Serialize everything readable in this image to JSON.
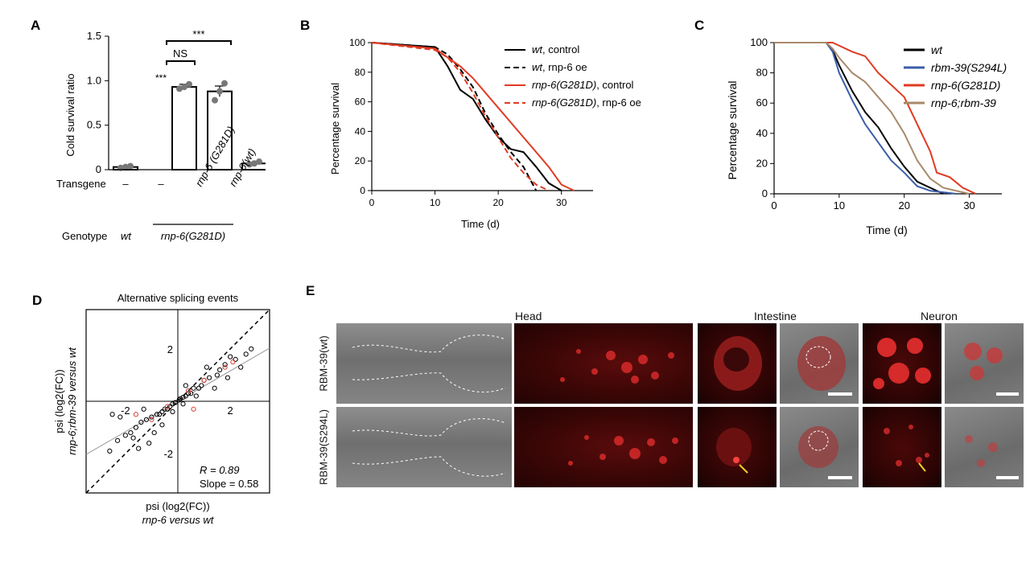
{
  "panelA": {
    "label": "A",
    "ylabel": "Cold survival ratio",
    "yticks": [
      "1.5",
      "1.0",
      "0.5",
      "0"
    ],
    "transgene_label": "Transgene",
    "transgene_values": [
      "–",
      "–",
      "rnp-6 (G281D)",
      "rnp-6(wt)"
    ],
    "genotype_label": "Genotype",
    "genotype_wt": "wt",
    "genotype_mut": "rnp-6(G281D)",
    "sig_ns": "NS",
    "sig_star": "***",
    "sig_bar_star": "***"
  },
  "panelB": {
    "label": "B",
    "ylabel": "Percentage survival",
    "xlabel": "Time (d)",
    "legend": [
      {
        "it": "wt",
        "rest": ", control"
      },
      {
        "it": "wt",
        "rest": ", rnp-6 oe"
      },
      {
        "it": "rnp-6(G281D)",
        "rest": ", control"
      },
      {
        "it": "rnp-6(G281D)",
        "rest": ", rnp-6 oe"
      }
    ]
  },
  "panelC": {
    "label": "C",
    "ylabel": "Percentage survival",
    "xlabel": "Time (d)",
    "legend": [
      "wt",
      "rbm-39(S294L)",
      "rnp-6(G281D)",
      "rnp-6;rbm-39"
    ]
  },
  "panelD": {
    "label": "D",
    "title": "Alternative splicing events",
    "ylabel1": "psi (log2(FC))",
    "ylabel2": "rnp-6;rbm-39 versus wt",
    "xlabel1": "psi (log2(FC))",
    "xlabel2": "rnp-6 versus wt",
    "r_text": "R = 0.89",
    "slope_text": "Slope = 0.58"
  },
  "panelE": {
    "label": "E",
    "col_head": "Head",
    "col_intestine": "Intestine",
    "col_neuron": "Neuron",
    "row1": "RBM-39(wt)",
    "row2": "RBM-39(S294L)"
  },
  "chart_data": [
    {
      "type": "bar",
      "panel": "A",
      "categories": [
        "wt –",
        "rnp-6(G281D) –",
        "rnp-6(G281D) + rnp-6(G281D)",
        "rnp-6(G281D) + rnp-6(wt)"
      ],
      "values": [
        0.03,
        0.93,
        0.88,
        0.07
      ],
      "errors": [
        0.01,
        0.03,
        0.06,
        0.01
      ],
      "points": [
        [
          0.02,
          0.03,
          0.04
        ],
        [
          0.91,
          0.93,
          0.96
        ],
        [
          0.78,
          0.88,
          0.97
        ],
        [
          0.06,
          0.07,
          0.09
        ]
      ],
      "ylim": [
        0,
        1.5
      ],
      "yticks": [
        0,
        0.5,
        1.0,
        1.5
      ],
      "ylabel": "Cold survival ratio"
    },
    {
      "type": "line",
      "panel": "B",
      "xlim": [
        0,
        35
      ],
      "ylim": [
        0,
        100
      ],
      "xticks": [
        0,
        10,
        20,
        30
      ],
      "yticks": [
        0,
        20,
        40,
        60,
        80,
        100
      ],
      "xlabel": "Time (d)",
      "ylabel": "Percentage survival",
      "series": [
        {
          "name": "wt, control",
          "color": "#000000",
          "dash": false,
          "points": [
            [
              0,
              100
            ],
            [
              10,
              97
            ],
            [
              12,
              84
            ],
            [
              14,
              68
            ],
            [
              16,
              62
            ],
            [
              18,
              48
            ],
            [
              20,
              36
            ],
            [
              22,
              28
            ],
            [
              24,
              26
            ],
            [
              26,
              16
            ],
            [
              28,
              5
            ],
            [
              30,
              0
            ]
          ]
        },
        {
          "name": "wt, rnp-6 oe",
          "color": "#000000",
          "dash": true,
          "points": [
            [
              0,
              100
            ],
            [
              10,
              97
            ],
            [
              12,
              92
            ],
            [
              14,
              82
            ],
            [
              16,
              70
            ],
            [
              18,
              52
            ],
            [
              20,
              38
            ],
            [
              22,
              26
            ],
            [
              24,
              16
            ],
            [
              26,
              0
            ]
          ]
        },
        {
          "name": "rnp-6(G281D), control",
          "color": "#e03a22",
          "dash": false,
          "points": [
            [
              0,
              100
            ],
            [
              10,
              96
            ],
            [
              12,
              90
            ],
            [
              14,
              84
            ],
            [
              16,
              76
            ],
            [
              18,
              66
            ],
            [
              20,
              56
            ],
            [
              22,
              46
            ],
            [
              24,
              36
            ],
            [
              26,
              26
            ],
            [
              28,
              16
            ],
            [
              30,
              4
            ],
            [
              32,
              0
            ]
          ]
        },
        {
          "name": "rnp-6(G281D), rnp-6 oe",
          "color": "#e03a22",
          "dash": true,
          "points": [
            [
              0,
              100
            ],
            [
              10,
              95
            ],
            [
              12,
              90
            ],
            [
              14,
              80
            ],
            [
              16,
              66
            ],
            [
              18,
              50
            ],
            [
              20,
              36
            ],
            [
              22,
              22
            ],
            [
              24,
              12
            ],
            [
              26,
              4
            ],
            [
              28,
              0
            ]
          ]
        }
      ]
    },
    {
      "type": "line",
      "panel": "C",
      "xlim": [
        0,
        35
      ],
      "ylim": [
        0,
        100
      ],
      "xticks": [
        0,
        10,
        20,
        30
      ],
      "yticks": [
        0,
        20,
        40,
        60,
        80,
        100
      ],
      "xlabel": "Time (d)",
      "ylabel": "Percentage survival",
      "series": [
        {
          "name": "wt",
          "color": "#000000",
          "points": [
            [
              0,
              100
            ],
            [
              8,
              100
            ],
            [
              9,
              95
            ],
            [
              10,
              85
            ],
            [
              12,
              68
            ],
            [
              14,
              54
            ],
            [
              16,
              44
            ],
            [
              18,
              30
            ],
            [
              20,
              18
            ],
            [
              22,
              8
            ],
            [
              24,
              4
            ],
            [
              26,
              0
            ]
          ]
        },
        {
          "name": "rbm-39(S294L)",
          "color": "#3a5ea8",
          "points": [
            [
              0,
              100
            ],
            [
              8,
              100
            ],
            [
              9,
              94
            ],
            [
              10,
              80
            ],
            [
              12,
              62
            ],
            [
              14,
              46
            ],
            [
              16,
              34
            ],
            [
              18,
              22
            ],
            [
              20,
              14
            ],
            [
              22,
              5
            ],
            [
              24,
              2
            ],
            [
              26,
              1
            ],
            [
              28,
              0
            ]
          ]
        },
        {
          "name": "rnp-6(G281D)",
          "color": "#e03a22",
          "points": [
            [
              0,
              100
            ],
            [
              9,
              100
            ],
            [
              10,
              98
            ],
            [
              12,
              94
            ],
            [
              14,
              91
            ],
            [
              16,
              80
            ],
            [
              18,
              72
            ],
            [
              20,
              64
            ],
            [
              22,
              46
            ],
            [
              24,
              28
            ],
            [
              25,
              14
            ],
            [
              27,
              11
            ],
            [
              29,
              4
            ],
            [
              31,
              0
            ]
          ]
        },
        {
          "name": "rnp-6;rbm-39",
          "color": "#a88a6a",
          "points": [
            [
              0,
              100
            ],
            [
              8,
              100
            ],
            [
              9,
              96
            ],
            [
              10,
              90
            ],
            [
              12,
              80
            ],
            [
              14,
              74
            ],
            [
              16,
              64
            ],
            [
              18,
              54
            ],
            [
              20,
              40
            ],
            [
              22,
              22
            ],
            [
              24,
              10
            ],
            [
              26,
              4
            ],
            [
              28,
              2
            ],
            [
              30,
              0
            ]
          ]
        }
      ]
    },
    {
      "type": "scatter",
      "panel": "D",
      "xlim": [
        -3.5,
        3.5
      ],
      "ylim": [
        -3.5,
        3.5
      ],
      "xticks": [
        -2,
        2
      ],
      "yticks": [
        -2,
        2
      ],
      "title": "Alternative splicing events",
      "r": 0.89,
      "slope": 0.58,
      "series": [
        {
          "name": "black",
          "color": "#000000",
          "points": [
            [
              2.2,
              1.6
            ],
            [
              2.0,
              1.7
            ],
            [
              2.6,
              1.8
            ],
            [
              1.8,
              1.4
            ],
            [
              1.6,
              1.2
            ],
            [
              2.4,
              1.3
            ],
            [
              1.5,
              1.0
            ],
            [
              1.2,
              0.9
            ],
            [
              1.0,
              0.8
            ],
            [
              0.9,
              0.6
            ],
            [
              0.8,
              0.5
            ],
            [
              0.6,
              0.5
            ],
            [
              0.5,
              0.3
            ],
            [
              0.4,
              0.3
            ],
            [
              0.3,
              0.2
            ],
            [
              0.2,
              0.15
            ],
            [
              0.1,
              0.1
            ],
            [
              0.05,
              0.05
            ],
            [
              -0.1,
              -0.05
            ],
            [
              -0.2,
              -0.1
            ],
            [
              -0.3,
              -0.2
            ],
            [
              -0.4,
              -0.3
            ],
            [
              -0.5,
              -0.3
            ],
            [
              -0.6,
              -0.4
            ],
            [
              -0.7,
              -0.5
            ],
            [
              -0.8,
              -0.5
            ],
            [
              -1.0,
              -0.6
            ],
            [
              -1.2,
              -0.7
            ],
            [
              -1.4,
              -0.8
            ],
            [
              -1.6,
              -1.0
            ],
            [
              -1.8,
              -1.2
            ],
            [
              -2.0,
              -1.3
            ],
            [
              -2.3,
              -1.5
            ],
            [
              -2.6,
              -1.9
            ],
            [
              -1.1,
              -1.6
            ],
            [
              -1.5,
              -1.8
            ],
            [
              -0.9,
              -1.2
            ],
            [
              -2.2,
              -0.6
            ],
            [
              -2.5,
              -0.5
            ],
            [
              1.4,
              0.5
            ],
            [
              0.7,
              0.2
            ],
            [
              2.8,
              2.0
            ],
            [
              1.1,
              1.3
            ],
            [
              -0.2,
              -0.4
            ],
            [
              0.3,
              0.6
            ],
            [
              -1.3,
              -0.3
            ],
            [
              1.9,
              0.9
            ],
            [
              -0.6,
              -0.9
            ],
            [
              0.2,
              -0.1
            ],
            [
              -1.7,
              -1.4
            ]
          ]
        },
        {
          "name": "red",
          "color": "#d9423a",
          "points": [
            [
              1.8,
              1.3
            ],
            [
              1.0,
              0.8
            ],
            [
              0.6,
              -0.3
            ],
            [
              -1.0,
              -0.7
            ],
            [
              -1.6,
              -0.5
            ],
            [
              0.4,
              0.4
            ],
            [
              -0.4,
              -0.2
            ],
            [
              2.1,
              1.5
            ]
          ]
        }
      ]
    }
  ]
}
